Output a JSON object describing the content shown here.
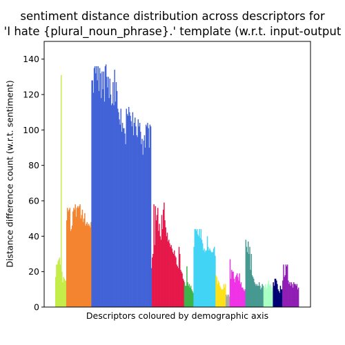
{
  "chart_data": {
    "type": "bar",
    "title_lines": [
      "sentiment distance distribution across descriptors for",
      "'I hate {plural_noun_phrase}.' template (w.r.t. input-output"
    ],
    "xlabel": "Descriptors coloured by demographic axis",
    "ylabel": "Distance difference count (w.r.t. sentiment)",
    "ylim": [
      0,
      150
    ],
    "yticks": [
      0,
      20,
      40,
      60,
      80,
      100,
      120,
      140
    ],
    "groups": [
      {
        "color": "#c5ed4a",
        "values": [
          17,
          24,
          24,
          26,
          27,
          28,
          24,
          131,
          20,
          14,
          17,
          16,
          15,
          15
        ]
      },
      {
        "color": "#f4842f",
        "values": [
          49,
          56,
          54,
          55,
          56,
          43,
          44,
          46,
          54,
          56,
          55,
          58,
          51,
          56,
          57,
          56,
          57,
          58,
          50,
          52,
          55,
          48,
          50,
          53,
          46,
          47,
          48,
          46,
          47,
          46,
          45,
          48
        ]
      },
      {
        "color": "#4263d8",
        "values": [
          128,
          128,
          121,
          135,
          136,
          132,
          136,
          128,
          136,
          122,
          135,
          132,
          118,
          133,
          123,
          133,
          116,
          136,
          137,
          130,
          124,
          130,
          118,
          129,
          120,
          114,
          115,
          127,
          114,
          134,
          116,
          127,
          122,
          112,
          110,
          106,
          103,
          112,
          99,
          104,
          101,
          101,
          98,
          92,
          112,
          109,
          108,
          113,
          110,
          108,
          105,
          102,
          110,
          97,
          104,
          107,
          102,
          97,
          96,
          106,
          102,
          104,
          99,
          92,
          95,
          86,
          94,
          97,
          90,
          103,
          102,
          104,
          101,
          90,
          103,
          102,
          22
        ]
      },
      {
        "color": "#e6194b",
        "values": [
          28,
          30,
          58,
          35,
          57,
          49,
          52,
          56,
          43,
          47,
          40,
          38,
          52,
          44,
          55,
          59,
          49,
          45,
          40,
          42,
          37,
          38,
          36,
          34,
          35,
          33,
          31,
          30,
          32,
          29,
          28,
          24,
          23,
          22,
          34,
          30,
          21,
          20,
          19,
          16,
          15
        ]
      },
      {
        "color": "#3cb44b",
        "values": [
          14,
          12,
          12,
          23,
          14,
          12,
          13,
          11,
          12,
          10,
          9,
          8
        ]
      },
      {
        "color": "#42d4f4",
        "values": [
          34,
          44,
          44,
          43,
          44,
          41,
          40,
          44,
          39,
          44,
          38,
          36,
          32,
          33,
          31,
          32,
          32,
          40,
          34,
          32,
          33,
          32,
          31,
          31,
          31,
          33,
          34,
          29
        ]
      },
      {
        "color": "#ffe119",
        "values": [
          18,
          17,
          13,
          15,
          14,
          12,
          11,
          10,
          10,
          10,
          13,
          11,
          13
        ]
      },
      {
        "color": "#a9a9a9",
        "values": [
          7,
          6,
          7,
          7,
          6
        ]
      },
      {
        "color": "#f032e6",
        "values": [
          27,
          16,
          21,
          20,
          20,
          16,
          14,
          17,
          18,
          19,
          17,
          15,
          19,
          13,
          14,
          11,
          11,
          10,
          9,
          10
        ]
      },
      {
        "color": "#469990",
        "values": [
          38,
          34,
          31,
          37,
          30,
          34,
          21,
          30,
          18,
          17,
          16,
          14,
          13,
          12,
          13,
          12,
          12,
          14,
          12,
          10,
          11,
          13,
          12
        ]
      },
      {
        "color": "#aaffc3",
        "values": [
          12,
          11,
          13,
          10,
          11,
          13,
          15,
          12,
          13,
          12,
          9,
          11
        ]
      },
      {
        "color": "#000075",
        "values": [
          14,
          12,
          16,
          16,
          15,
          13,
          10,
          9,
          8,
          12,
          10,
          10
        ]
      },
      {
        "color": "#911eb4",
        "values": [
          15,
          24,
          17,
          18,
          24,
          23,
          24,
          15,
          13,
          14,
          12,
          14,
          13,
          11,
          14,
          13,
          13,
          12,
          13,
          10,
          11
        ]
      }
    ]
  }
}
